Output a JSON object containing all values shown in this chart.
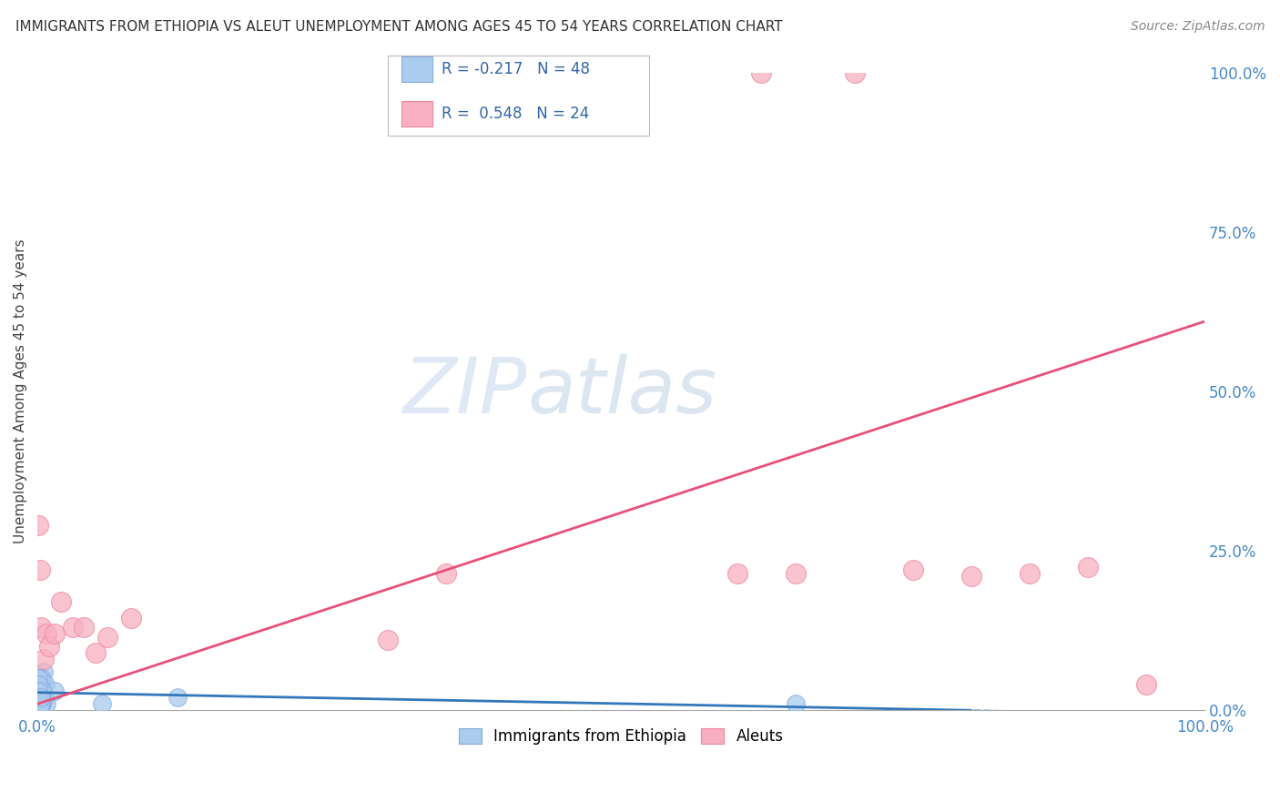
{
  "title": "IMMIGRANTS FROM ETHIOPIA VS ALEUT UNEMPLOYMENT AMONG AGES 45 TO 54 YEARS CORRELATION CHART",
  "source": "Source: ZipAtlas.com",
  "ylabel": "Unemployment Among Ages 45 to 54 years",
  "xlim": [
    0,
    1.0
  ],
  "ylim": [
    0,
    1.0
  ],
  "ytick_vals_right": [
    0.0,
    0.25,
    0.5,
    0.75,
    1.0
  ],
  "ytick_labels_right": [
    "0.0%",
    "25.0%",
    "50.0%",
    "75.0%",
    "100.0%"
  ],
  "blue_color": "#aaccee",
  "blue_edge_color": "#88aadd",
  "pink_color": "#f8b0c0",
  "pink_edge_color": "#ee88a0",
  "blue_line_color": "#3377bb",
  "pink_line_color": "#e8507a",
  "background_color": "#ffffff",
  "grid_color": "#cccccc",
  "legend_blue_r": "R = -0.217",
  "legend_blue_n": "N = 48",
  "legend_pink_r": "R = 0.548",
  "legend_pink_n": "N = 24",
  "blue_line_slope": -0.035,
  "blue_line_intercept": 0.028,
  "pink_line_slope": 0.6,
  "pink_line_intercept": 0.01,
  "blue_scatter_x": [
    0.001,
    0.002,
    0.003,
    0.001,
    0.004,
    0.002,
    0.003,
    0.005,
    0.001,
    0.002,
    0.006,
    0.003,
    0.004,
    0.002,
    0.001,
    0.003,
    0.005,
    0.002,
    0.004,
    0.001,
    0.007,
    0.003,
    0.002,
    0.004,
    0.001,
    0.006,
    0.003,
    0.002,
    0.005,
    0.001,
    0.008,
    0.002,
    0.003,
    0.004,
    0.001,
    0.015,
    0.003,
    0.002,
    0.055,
    0.004,
    0.001,
    0.002,
    0.003,
    0.12,
    0.002,
    0.001,
    0.003,
    0.65
  ],
  "blue_scatter_y": [
    0.03,
    0.02,
    0.04,
    0.01,
    0.05,
    0.03,
    0.02,
    0.06,
    0.01,
    0.04,
    0.02,
    0.03,
    0.01,
    0.04,
    0.02,
    0.05,
    0.03,
    0.01,
    0.02,
    0.03,
    0.04,
    0.01,
    0.02,
    0.03,
    0.04,
    0.02,
    0.01,
    0.03,
    0.02,
    0.05,
    0.01,
    0.02,
    0.03,
    0.01,
    0.02,
    0.03,
    0.01,
    0.02,
    0.01,
    0.03,
    0.04,
    0.02,
    0.01,
    0.02,
    0.0,
    0.03,
    0.02,
    0.01
  ],
  "pink_scatter_x": [
    0.001,
    0.002,
    0.003,
    0.005,
    0.008,
    0.01,
    0.015,
    0.02,
    0.03,
    0.04,
    0.05,
    0.06,
    0.08,
    0.3,
    0.35,
    0.6,
    0.62,
    0.65,
    0.7,
    0.75,
    0.8,
    0.85,
    0.9,
    0.95
  ],
  "pink_scatter_y": [
    0.29,
    0.22,
    0.13,
    0.08,
    0.12,
    0.1,
    0.12,
    0.17,
    0.13,
    0.13,
    0.09,
    0.115,
    0.145,
    0.11,
    0.215,
    0.215,
    1.0,
    0.215,
    1.0,
    0.22,
    0.21,
    0.215,
    0.225,
    0.04
  ]
}
